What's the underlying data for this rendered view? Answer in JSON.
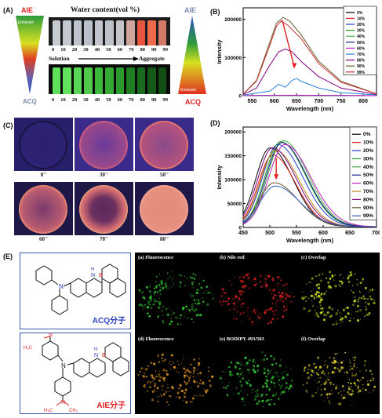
{
  "panel_A": {
    "label": "(A)",
    "title": "Water content(vol %)",
    "fractions": [
      "0",
      "10",
      "20",
      "30",
      "40",
      "50",
      "60",
      "70",
      "80",
      "90",
      "99"
    ],
    "solution_label": "Solution",
    "aggregate_label": "Aggregate",
    "left_aie": "AIE",
    "left_emission": "Emission",
    "left_acq": "ACQ",
    "right_aie": "AIE",
    "right_emission": "Emission",
    "right_acq": "ACQ",
    "top_vial_colors": [
      "#c6cbd2",
      "#c4c8cf",
      "#bfc4cc",
      "#bbc1ca",
      "#c2c6cc",
      "#bcc1c7",
      "#c3c5c8",
      "#cfa69d",
      "#e8553e",
      "#ef6a4a",
      "#d67a68"
    ],
    "bottom_vial_colors": [
      "#5ee05a",
      "#62e35e",
      "#5ad656",
      "#4fc84c",
      "#3cb83b",
      "#35a836",
      "#2a9a2c",
      "#1f7d22",
      "#196b1d",
      "#155a18",
      "#124d15"
    ]
  },
  "panel_B": {
    "label": "(B)",
    "chart_data": {
      "type": "line",
      "xlabel": "Wavelength (nm)",
      "ylabel": "Intensity",
      "xlim": [
        530,
        830
      ],
      "ylim": [
        0,
        230000
      ],
      "xticks": [
        550,
        600,
        650,
        700,
        750,
        800
      ],
      "yticks": [
        0,
        100000,
        200000
      ],
      "ytick_labels": [
        "0",
        "100000",
        "200000"
      ],
      "legend_position": "top-right",
      "series": [
        {
          "name": "0%",
          "color": "#000000",
          "x": [
            530,
            600,
            650,
            700,
            750,
            830
          ],
          "y": [
            0,
            200,
            300,
            200,
            100,
            0
          ]
        },
        {
          "name": "10%",
          "color": "#e02020",
          "x": [
            530,
            600,
            650,
            700,
            750,
            830
          ],
          "y": [
            0,
            300,
            400,
            300,
            150,
            0
          ]
        },
        {
          "name": "20%",
          "color": "#1f3fd0",
          "x": [
            530,
            600,
            650,
            700,
            750,
            830
          ],
          "y": [
            0,
            300,
            500,
            350,
            150,
            0
          ]
        },
        {
          "name": "30%",
          "color": "#20a020",
          "x": [
            530,
            600,
            650,
            700,
            750,
            830
          ],
          "y": [
            0,
            400,
            600,
            400,
            200,
            0
          ]
        },
        {
          "name": "40%",
          "color": "#4aa84a",
          "x": [
            530,
            600,
            650,
            700,
            750,
            830
          ],
          "y": [
            0,
            500,
            700,
            500,
            200,
            0
          ]
        },
        {
          "name": "50%",
          "color": "#1a1a8a",
          "x": [
            530,
            600,
            650,
            700,
            750,
            830
          ],
          "y": [
            0,
            700,
            900,
            600,
            300,
            0
          ]
        },
        {
          "name": "60%",
          "color": "#c020c0",
          "x": [
            530,
            600,
            650,
            700,
            750,
            830
          ],
          "y": [
            0,
            900,
            1200,
            800,
            400,
            0
          ]
        },
        {
          "name": "70%",
          "color": "#2a7fd4",
          "x": [
            530,
            590,
            610,
            625,
            640,
            650,
            660,
            700,
            750,
            830
          ],
          "y": [
            1500,
            12000,
            30000,
            22000,
            40000,
            45000,
            38000,
            20000,
            8000,
            2000
          ]
        },
        {
          "name": "80%",
          "color": "#800080",
          "x": [
            530,
            560,
            590,
            610,
            625,
            640,
            660,
            700,
            750,
            830
          ],
          "y": [
            3000,
            20000,
            80000,
            115000,
            122000,
            115000,
            90000,
            50000,
            20000,
            3000
          ]
        },
        {
          "name": "90%",
          "color": "#6b5a2a",
          "x": [
            530,
            560,
            590,
            605,
            620,
            635,
            660,
            700,
            750,
            830
          ],
          "y": [
            4000,
            40000,
            140000,
            190000,
            205000,
            195000,
            160000,
            90000,
            38000,
            5000
          ]
        },
        {
          "name": "99%",
          "color": "#c43030",
          "x": [
            530,
            560,
            590,
            605,
            615,
            630,
            660,
            700,
            750,
            830
          ],
          "y": [
            4000,
            38000,
            132000,
            182000,
            195000,
            185000,
            150000,
            84000,
            35000,
            5000
          ]
        }
      ]
    }
  },
  "panel_C": {
    "label": "(C)",
    "times": [
      "0''",
      "30''",
      "50''",
      "60''",
      "70''",
      "80''"
    ]
  },
  "panel_D": {
    "label": "(D)",
    "chart_data": {
      "type": "line",
      "xlabel": "Wavelength (nm)",
      "ylabel": "Intensity",
      "xlim": [
        450,
        700
      ],
      "ylim": [
        0,
        210000
      ],
      "xticks": [
        450,
        500,
        550,
        600,
        650,
        700
      ],
      "yticks": [
        0,
        50000,
        100000,
        150000,
        200000
      ],
      "ytick_labels": [
        "0",
        "50000",
        "100000",
        "150000",
        "200000"
      ],
      "legend_position": "top-right",
      "series": [
        {
          "name": "0%",
          "color": "#000000",
          "peak": 500,
          "amp": 165000,
          "width": 48
        },
        {
          "name": "10%",
          "color": "#e02020",
          "peak": 505,
          "amp": 150000,
          "width": 48
        },
        {
          "name": "20%",
          "color": "#1f3fd0",
          "peak": 515,
          "amp": 172000,
          "width": 52
        },
        {
          "name": "30%",
          "color": "#20a020",
          "peak": 520,
          "amp": 178000,
          "width": 52
        },
        {
          "name": "40%",
          "color": "#4aa84a",
          "peak": 525,
          "amp": 180000,
          "width": 52
        },
        {
          "name": "50%",
          "color": "#1a1a8a",
          "peak": 522,
          "amp": 176000,
          "width": 52
        },
        {
          "name": "60%",
          "color": "#c020c0",
          "peak": 528,
          "amp": 172000,
          "width": 54
        },
        {
          "name": "70%",
          "color": "#b8860b",
          "peak": 510,
          "amp": 160000,
          "width": 50
        },
        {
          "name": "80%",
          "color": "#800080",
          "peak": 505,
          "amp": 165000,
          "width": 50
        },
        {
          "name": "90%",
          "color": "#6b5a2a",
          "peak": 508,
          "amp": 92000,
          "width": 50
        },
        {
          "name": "99%",
          "color": "#3060c0",
          "peak": 510,
          "amp": 85000,
          "width": 52
        }
      ]
    }
  },
  "panel_E": {
    "label": "(E)",
    "acq_caption": "ACQ分子",
    "aie_caption": "AIE分子",
    "atom_N": "N",
    "atom_B": "B",
    "atom_H": "H",
    "methyl_left": "H₃C",
    "methyl_right": "CH₃",
    "top_row": [
      "(a) Fluorescence",
      "(b) Nile red",
      "(c) Overlap"
    ],
    "bottom_row": [
      "(d) Fluorescence",
      "(e) BODIPY 493/503",
      "(f) Overlap"
    ]
  }
}
